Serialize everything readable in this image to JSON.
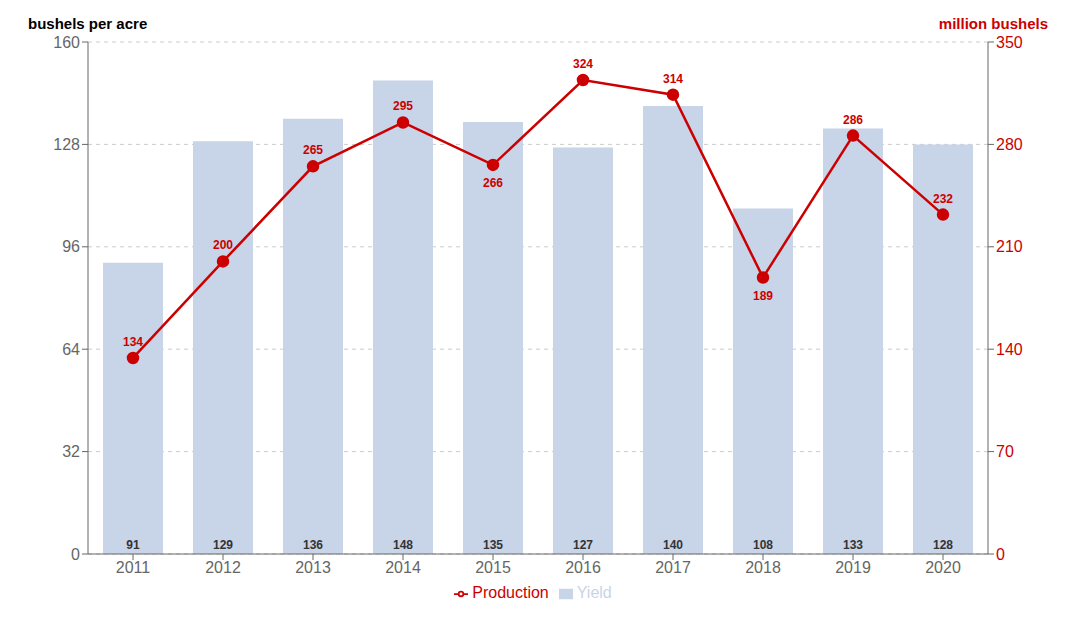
{
  "chart_data": {
    "type": "bar",
    "categories": [
      "2011",
      "2012",
      "2013",
      "2014",
      "2015",
      "2016",
      "2017",
      "2018",
      "2019",
      "2020"
    ],
    "series": [
      {
        "name": "Yield",
        "type": "bar",
        "color": "#c8d4e8",
        "values": [
          91,
          129,
          136,
          148,
          135,
          127,
          140,
          108,
          133,
          128
        ]
      },
      {
        "name": "Production",
        "type": "line",
        "axis": "y2",
        "color": "#cc0000",
        "marker": "circle",
        "values": [
          134,
          200,
          265,
          295,
          266,
          324,
          314,
          189,
          286,
          232
        ]
      }
    ],
    "y_label": "bushels per acre",
    "y2_label": "million bushels",
    "ylim": [
      0,
      160
    ],
    "yticks": [
      0,
      32,
      64,
      96,
      128,
      160
    ],
    "y2lim": [
      0,
      350
    ],
    "y2ticks": [
      0,
      70,
      140,
      210,
      280,
      350
    ],
    "grid": true,
    "legend": "bottom",
    "data_labels": true
  }
}
